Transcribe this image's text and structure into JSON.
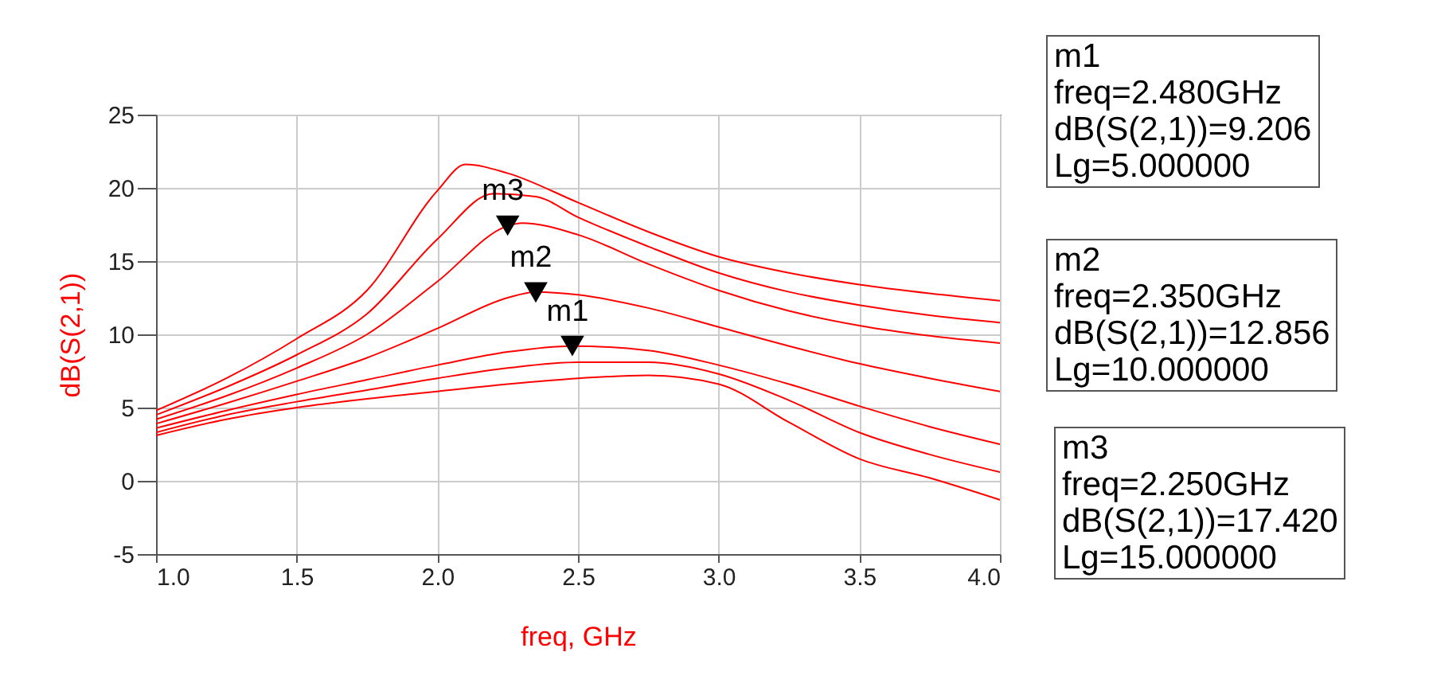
{
  "chart_data": {
    "type": "line",
    "xlabel": "freq, GHz",
    "ylabel": "dB(S(2,1))",
    "xlim": [
      1.0,
      4.0
    ],
    "ylim": [
      -5,
      25
    ],
    "xticks": [
      {
        "value": 1,
        "label": "1.0"
      },
      1.5,
      {
        "value": 2,
        "label": "2.0"
      },
      2.5,
      {
        "value": 3,
        "label": "3.0"
      },
      3.5,
      {
        "value": 4,
        "label": "4.0"
      }
    ],
    "yticks": [
      -5,
      0,
      5,
      10,
      15,
      20,
      25
    ],
    "grid": true,
    "legend": false,
    "series": [
      {
        "color": "#ff0000",
        "x": [
          1.0,
          1.25,
          1.5,
          1.75,
          2.0,
          2.25,
          2.5,
          2.75,
          3.0,
          3.25,
          3.5,
          3.75,
          4.0
        ],
        "values": [
          3.1,
          4.2,
          5.0,
          5.6,
          6.1,
          6.6,
          7.0,
          7.2,
          6.6,
          4.0,
          1.5,
          0.2,
          -1.3
        ]
      },
      {
        "color": "#ff0000",
        "x": [
          1.0,
          1.25,
          1.5,
          1.75,
          2.0,
          2.25,
          2.5,
          2.75,
          3.0,
          3.25,
          3.5,
          3.75,
          4.0
        ],
        "values": [
          3.3,
          4.5,
          5.4,
          6.2,
          7.0,
          7.7,
          8.1,
          8.1,
          7.3,
          5.5,
          3.3,
          1.8,
          0.6
        ]
      },
      {
        "color": "#ff0000",
        "x": [
          1.0,
          1.25,
          1.5,
          1.75,
          2.0,
          2.25,
          2.48,
          2.75,
          3.0,
          3.25,
          3.5,
          3.75,
          4.0
        ],
        "values": [
          3.6,
          4.8,
          5.9,
          6.9,
          7.9,
          8.8,
          9.2,
          8.9,
          7.9,
          6.6,
          5.1,
          3.7,
          2.5
        ]
      },
      {
        "color": "#ff0000",
        "x": [
          1.0,
          1.25,
          1.5,
          1.75,
          2.0,
          2.25,
          2.35,
          2.5,
          2.75,
          3.0,
          3.25,
          3.5,
          3.75,
          4.0
        ],
        "values": [
          3.9,
          5.3,
          6.8,
          8.4,
          10.4,
          12.5,
          12.9,
          12.7,
          11.8,
          10.5,
          9.2,
          8.0,
          7.0,
          6.1
        ]
      },
      {
        "color": "#ff0000",
        "x": [
          1.0,
          1.25,
          1.5,
          1.75,
          2.0,
          2.25,
          2.3,
          2.5,
          2.75,
          3.0,
          3.25,
          3.5,
          3.75,
          4.0
        ],
        "values": [
          4.2,
          5.8,
          7.7,
          10.0,
          13.6,
          17.4,
          17.6,
          16.8,
          14.8,
          13.0,
          11.6,
          10.6,
          9.9,
          9.4
        ]
      },
      {
        "color": "#ff0000",
        "x": [
          1.0,
          1.25,
          1.5,
          1.75,
          2.0,
          2.2,
          2.35,
          2.5,
          2.75,
          3.0,
          3.25,
          3.5,
          3.75,
          4.0
        ],
        "values": [
          4.5,
          6.4,
          8.6,
          11.4,
          16.5,
          19.6,
          19.4,
          18.0,
          16.0,
          14.2,
          12.9,
          12.0,
          11.3,
          10.8
        ]
      },
      {
        "color": "#ff0000",
        "x": [
          1.0,
          1.25,
          1.5,
          1.75,
          2.0,
          2.1,
          2.25,
          2.5,
          2.75,
          3.0,
          3.25,
          3.5,
          3.75,
          4.0
        ],
        "values": [
          4.8,
          7.0,
          9.7,
          13.0,
          19.8,
          21.6,
          21.0,
          19.0,
          17.0,
          15.3,
          14.2,
          13.4,
          12.8,
          12.3
        ]
      }
    ],
    "annotations": [
      {
        "text": "m1",
        "x": 2.48,
        "y": 9.206
      },
      {
        "text": "m2",
        "x": 2.35,
        "y": 12.856
      },
      {
        "text": "m3",
        "x": 2.25,
        "y": 17.42
      },
      "m1\nfreq=2.480GHz\ndB(S(2,1))=9.206\nLg=5.000000",
      "m2\nfreq=2.350GHz\ndB(S(2,1))=12.856\nLg=10.000000",
      "m3\nfreq=2.250GHz\ndB(S(2,1))=17.420\nLg=15.000000"
    ]
  }
}
